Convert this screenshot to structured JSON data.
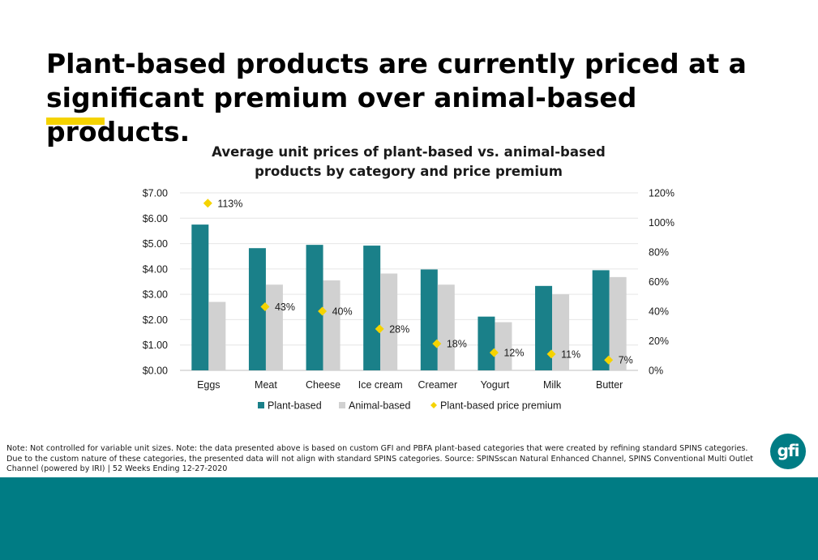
{
  "page": {
    "headline_line1": "Plant-based products are currently priced at a",
    "headline_line2": "significant premium over animal-based products.",
    "note": "Note: Not controlled for variable unit sizes. Note: the data presented above is based on custom GFI and PBFA plant-based categories that were created by refining standard SPINS categories. Due to the custom nature of these categories, the presented data will not align with standard SPINS categories. Source: SPINSscan Natural Enhanced Channel, SPINS Conventional Multi Outlet Channel (powered by IRI) | 52 Weeks Ending 12-27-2020",
    "logo_text": "gfi"
  },
  "colors": {
    "plant": "#1a8089",
    "animal": "#d1d1d1",
    "premium": "#f5d300",
    "accent": "#f5d300",
    "footer": "#007c84"
  },
  "chart_data": {
    "type": "bar",
    "title_line1": "Average unit prices of plant-based vs. animal-based",
    "title_line2": "products by category and price premium",
    "categories": [
      "Eggs",
      "Meat",
      "Cheese",
      "Ice cream",
      "Creamer",
      "Yogurt",
      "Milk",
      "Butter"
    ],
    "series": [
      {
        "name": "Plant-based",
        "axis": "left",
        "kind": "bar",
        "values": [
          5.75,
          4.82,
          4.95,
          4.92,
          3.98,
          2.12,
          3.33,
          3.95
        ]
      },
      {
        "name": "Animal-based",
        "axis": "left",
        "kind": "bar",
        "values": [
          2.7,
          3.38,
          3.55,
          3.82,
          3.38,
          1.9,
          3.0,
          3.68
        ]
      },
      {
        "name": "Plant-based price premium",
        "axis": "right",
        "kind": "scatter",
        "values": [
          113,
          43,
          40,
          28,
          18,
          12,
          11,
          7
        ],
        "labels": [
          "113%",
          "43%",
          "40%",
          "28%",
          "18%",
          "12%",
          "11%",
          "7%"
        ]
      }
    ],
    "left_axis": {
      "min": 0,
      "max": 7,
      "ticks": [
        "$0.00",
        "$1.00",
        "$2.00",
        "$3.00",
        "$4.00",
        "$5.00",
        "$6.00",
        "$7.00"
      ]
    },
    "right_axis": {
      "min": 0,
      "max": 120,
      "ticks": [
        "0%",
        "20%",
        "40%",
        "60%",
        "80%",
        "100%",
        "120%"
      ]
    },
    "grid": true,
    "legend_position": "bottom"
  }
}
